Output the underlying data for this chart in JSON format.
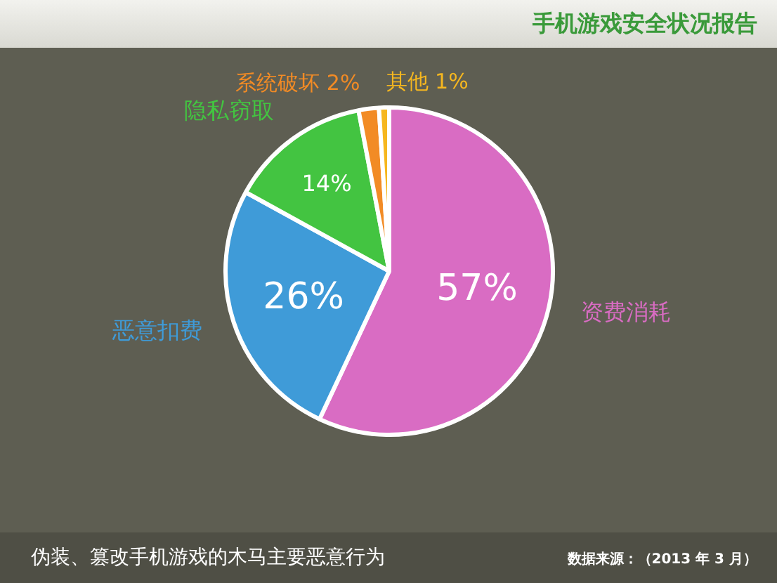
{
  "chart_data": {
    "type": "pie",
    "title": "手机游戏安全状况报告",
    "subtitle": "伪装、篡改手机游戏的木马主要恶意行为",
    "annotations": [
      "数据来源：（2013 年 3 月）"
    ],
    "categories": [
      "资费消耗",
      "恶意扣费",
      "隐私窃取",
      "系统破坏",
      "其他"
    ],
    "values": [
      57,
      26,
      14,
      2,
      1
    ],
    "value_labels": [
      "57%",
      "26%",
      "14%",
      "2%",
      "1%"
    ],
    "colors": [
      "#d96cc3",
      "#3f9bd8",
      "#43c441",
      "#f28b25",
      "#f6b71f"
    ]
  }
}
